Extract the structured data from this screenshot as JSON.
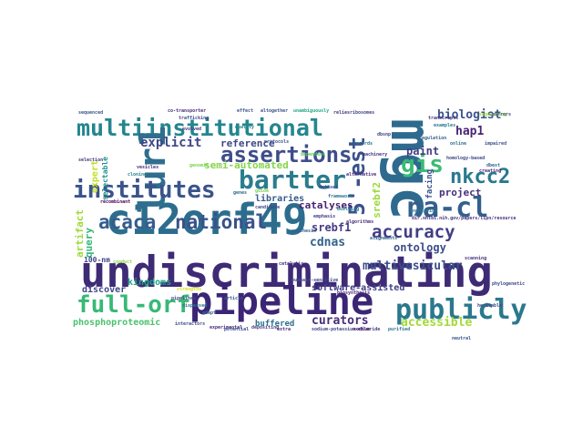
{
  "words": {
    "undiscriminating": {
      "text": "undiscriminating",
      "color": "#3e2a75"
    },
    "c12orf49": {
      "text": "c12orf49",
      "color": "#2c6d8e"
    },
    "pipeline": {
      "text": "pipeline",
      "color": "#3b2676"
    },
    "mgc": {
      "text": "mgc",
      "color": "#2e6a8e"
    },
    "multiinstitutional": {
      "text": "multiinstitutional",
      "color": "#24868e"
    },
    "lur1": {
      "text": "lur1",
      "color": "#2f6e8e"
    },
    "institutes": {
      "text": "institutes",
      "color": "#3a538b"
    },
    "bartter": {
      "text": "bartter",
      "color": "#2a7c8e"
    },
    "assertions": {
      "text": "assertions",
      "color": "#3e4d8a"
    },
    "est5": {
      "text": "5'-est",
      "color": "#3b518b"
    },
    "gis": {
      "text": "gis",
      "color": "#3bbb75"
    },
    "nacl": {
      "text": "na-cl",
      "color": "#345f8d"
    },
    "full_orf": {
      "text": "full-orf",
      "color": "#38b977"
    },
    "publicly": {
      "text": "publicly",
      "color": "#2a788e"
    },
    "national": {
      "text": "national",
      "color": "#3a528b"
    },
    "acaca": {
      "text": "acaca",
      "color": "#365c8d"
    },
    "accuracy": {
      "text": "accuracy",
      "color": "#433e85"
    },
    "nkcc2": {
      "text": "nkcc2",
      "color": "#29798e"
    },
    "biologist": {
      "text": "biologist",
      "color": "#3a548c"
    },
    "accessible": {
      "text": "accessible",
      "color": "#a2da37"
    },
    "curators": {
      "text": "curators",
      "color": "#472c7a"
    },
    "explicit": {
      "text": "explicit",
      "color": "#404688"
    },
    "reference": {
      "text": "reference",
      "color": "#3f4889"
    },
    "semi_automated": {
      "text": "semi-automated",
      "color": "#85d54a"
    },
    "srebf2_v": {
      "text": "srebf2",
      "color": "#9bd93c"
    },
    "hap1": {
      "text": "hap1",
      "color": "#482475"
    },
    "paint": {
      "text": "paint",
      "color": "#433e85"
    },
    "project": {
      "text": "project",
      "color": "#46307e"
    },
    "ontology": {
      "text": "ontology",
      "color": "#3d4d8a"
    },
    "multivesicular": {
      "text": "multivesicular",
      "color": "#3b518b"
    },
    "cdnas": {
      "text": "cdnas",
      "color": "#33638d"
    },
    "srebf1": {
      "text": "srebf1",
      "color": "#443983"
    },
    "catalyses": {
      "text": "catalyses",
      "color": "#481f70"
    },
    "libraries": {
      "text": "libraries",
      "color": "#375b8d"
    },
    "kingdoms": {
      "text": "kingdoms",
      "color": "#20a486"
    },
    "discover": {
      "text": "discover",
      "color": "#414487"
    },
    "phosphoproteomic": {
      "text": "phosphoproteomic",
      "color": "#4ac16d"
    },
    "software_assisted": {
      "text": "software-assisted",
      "color": "#424086"
    },
    "buffered": {
      "text": "buffered",
      "color": "#2d708e"
    },
    "facing": {
      "text": "facing",
      "color": "#3b528b"
    },
    "query": {
      "text": "query",
      "color": "#35b779"
    },
    "expert": {
      "text": "expert",
      "color": "#c2df23"
    },
    "artifact": {
      "text": "artifact",
      "color": "#9fda3a"
    },
    "orf100": {
      "text": "100-nm",
      "color": "#404588"
    },
    "selectable": {
      "text": "selectable",
      "color": "#21918c"
    },
    "url": {
      "text": "dir.nhlbi.nih.gov/papers/lipn/resource",
      "color": "#46327e"
    },
    "small": [
      {
        "text": "sequenced",
        "color": "#39568c"
      },
      {
        "text": "co-transporter",
        "color": "#472c7a"
      },
      {
        "text": "altogether",
        "color": "#3b528b"
      },
      {
        "text": "unambiguously",
        "color": "#22a884"
      },
      {
        "text": "relies",
        "color": "#46337f"
      },
      {
        "text": "ribosomes",
        "color": "#414487"
      },
      {
        "text": "trafficking",
        "color": "#3e4989"
      },
      {
        "text": "genomic",
        "color": "#7ad151"
      },
      {
        "text": "examples",
        "color": "#2a788e"
      },
      {
        "text": "dataset",
        "color": "#3e4a89"
      },
      {
        "text": "algorithms",
        "color": "#472d7b"
      },
      {
        "text": "synthesis",
        "color": "#355f8d"
      },
      {
        "text": "candidate",
        "color": "#3f4788"
      },
      {
        "text": "building",
        "color": "#26828e"
      },
      {
        "text": "framework",
        "color": "#2c728e"
      },
      {
        "text": "dependent",
        "color": "#5ec962"
      },
      {
        "text": "machinery",
        "color": "#46327e"
      },
      {
        "text": "annotation",
        "color": "#2a788e"
      },
      {
        "text": "emphasis",
        "color": "#423f85"
      },
      {
        "text": "alignments",
        "color": "#33638d"
      },
      {
        "text": "recombinant",
        "color": "#440154"
      },
      {
        "text": "phylogenetic",
        "color": "#3e4989"
      },
      {
        "text": "alternative",
        "color": "#472a7a"
      },
      {
        "text": "genes",
        "color": "#31688e"
      },
      {
        "text": "ouabain-sensitive",
        "color": "#3e4989"
      },
      {
        "text": "sodium-potassium-chloride",
        "color": "#414487"
      },
      {
        "text": "interactors",
        "color": "#3b528b"
      },
      {
        "text": "experimental",
        "color": "#472c7a"
      },
      {
        "text": "purified",
        "color": "#2c728e"
      },
      {
        "text": "neutral",
        "color": "#3a548c"
      },
      {
        "text": "selection",
        "color": "#453882"
      },
      {
        "text": "evolved",
        "color": "#46337f"
      },
      {
        "text": "dbsnp",
        "color": "#414487"
      },
      {
        "text": "quality",
        "color": "#25858e"
      },
      {
        "text": "impaired",
        "color": "#3b528b"
      },
      {
        "text": "regulation",
        "color": "#355f8d"
      },
      {
        "text": "sequencing",
        "color": "#a0da39"
      },
      {
        "text": "transcripts",
        "color": "#46337f"
      },
      {
        "text": "protocols",
        "color": "#3b528b"
      },
      {
        "text": "records",
        "color": "#2c728e"
      },
      {
        "text": "homology-based",
        "color": "#3e4989"
      },
      {
        "text": "dbest",
        "color": "#31688e"
      },
      {
        "text": "effect",
        "color": "#3a548c"
      },
      {
        "text": "guide",
        "color": "#7fd34e"
      },
      {
        "text": "creating",
        "color": "#482878"
      },
      {
        "text": "mirrors",
        "color": "#3d4e8a"
      },
      {
        "text": "scanning",
        "color": "#46327e"
      },
      {
        "text": "pipelines",
        "color": "#3e4989"
      },
      {
        "text": "online",
        "color": "#2c728e"
      },
      {
        "text": "vesicles",
        "color": "#472d7b"
      },
      {
        "text": "cloning",
        "color": "#26828e"
      },
      {
        "text": "strengths",
        "color": "#d8e219"
      },
      {
        "text": "depositing",
        "color": "#433e85"
      },
      {
        "text": "article",
        "color": "#3b528b"
      },
      {
        "text": "biosynthesis",
        "color": "#482576"
      },
      {
        "text": "extra",
        "color": "#46307e"
      },
      {
        "text": "potential",
        "color": "#3e4a89"
      },
      {
        "text": "adapt",
        "color": "#31688e"
      },
      {
        "text": "conduct",
        "color": "#8fd744"
      },
      {
        "text": "dispersed",
        "color": "#2c728e"
      },
      {
        "text": "catalytic",
        "color": "#46337f"
      },
      {
        "text": "sodium",
        "color": "#471063"
      },
      {
        "text": "heritable",
        "color": "#3f4788"
      }
    ]
  }
}
